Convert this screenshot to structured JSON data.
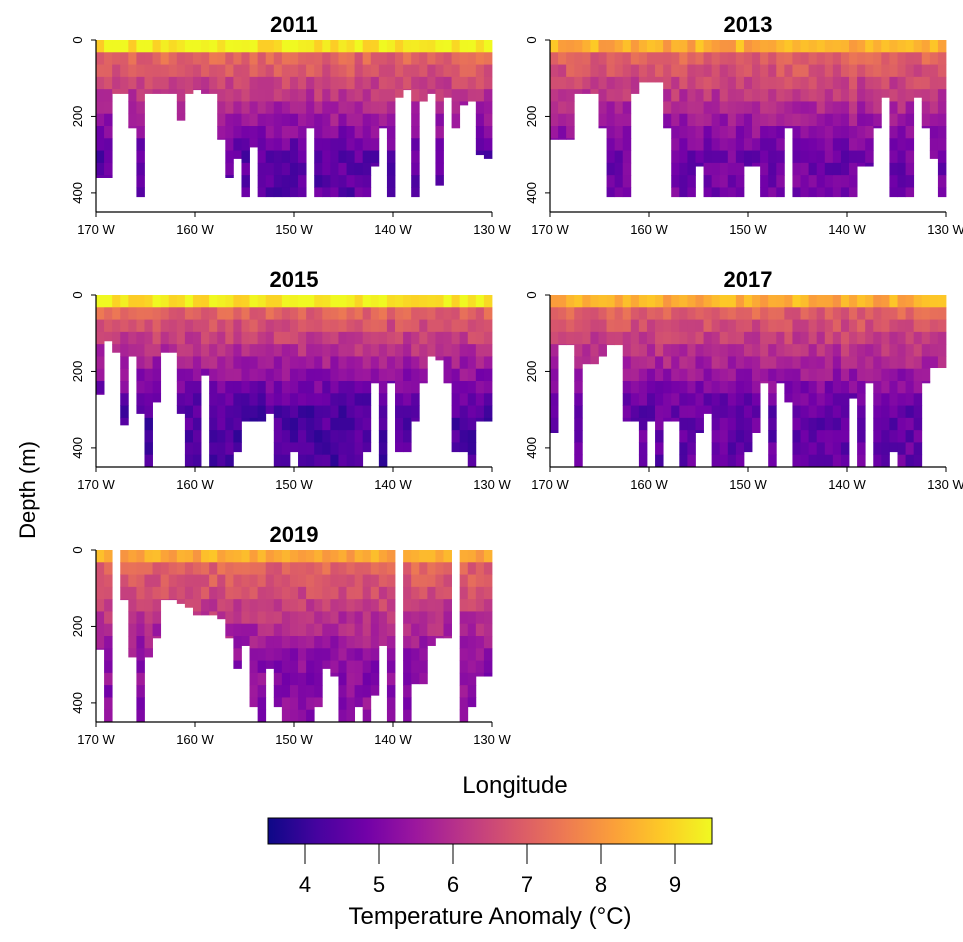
{
  "figure": {
    "y_axis_label": "Depth (m)",
    "x_axis_label": "Longitude"
  },
  "colorbar": {
    "label": "Temperature Anomaly (°C)",
    "min": 3.5,
    "max": 9.5,
    "ticks": [
      4,
      5,
      6,
      7,
      8,
      9
    ],
    "palette": [
      "#0d0887",
      "#46039f",
      "#7201a8",
      "#9c179e",
      "#bd3786",
      "#d8576b",
      "#ed7953",
      "#fb9f3a",
      "#fdca26",
      "#f0f921"
    ]
  },
  "chart_data": [
    {
      "type": "heatmap",
      "title": "2011",
      "x_range": [
        -170,
        -130
      ],
      "y_range": [
        0,
        450
      ],
      "y_inverted": true,
      "x_ticks": [
        "170 W",
        "160 W",
        "150 W",
        "140 W",
        "130 W"
      ],
      "y_ticks": [
        0,
        200,
        400
      ],
      "bottom_depth_profile": [
        330,
        330,
        110,
        110,
        200,
        380,
        110,
        110,
        110,
        110,
        180,
        110,
        100,
        110,
        110,
        230,
        330,
        280,
        380,
        250,
        380,
        380,
        380,
        380,
        380,
        380,
        200,
        380,
        380,
        380,
        380,
        380,
        380,
        380,
        300,
        200,
        380,
        120,
        100,
        380,
        130,
        110,
        350,
        120,
        200,
        140,
        130,
        270,
        280
      ],
      "surface_warm_depth": 40,
      "deep_value": 4.5
    },
    {
      "type": "heatmap",
      "title": "2013",
      "x_range": [
        -170,
        -130
      ],
      "y_range": [
        0,
        450
      ],
      "y_inverted": true,
      "x_ticks": [
        "170 W",
        "160 W",
        "150 W",
        "140 W",
        "130 W"
      ],
      "y_ticks": [
        0,
        200,
        400
      ],
      "bottom_depth_profile": [
        230,
        230,
        230,
        110,
        110,
        110,
        200,
        380,
        380,
        380,
        110,
        80,
        80,
        80,
        200,
        380,
        380,
        380,
        300,
        380,
        380,
        380,
        380,
        380,
        300,
        300,
        380,
        380,
        380,
        200,
        380,
        380,
        380,
        380,
        380,
        380,
        380,
        380,
        300,
        300,
        200,
        120,
        380,
        380,
        380,
        120,
        200,
        280,
        380
      ],
      "surface_warm_depth": 30,
      "deep_value": 4.8
    },
    {
      "type": "heatmap",
      "title": "2015",
      "x_range": [
        -170,
        -130
      ],
      "y_range": [
        0,
        450
      ],
      "y_inverted": true,
      "x_ticks": [
        "170 W",
        "160 W",
        "150 W",
        "140 W",
        "130 W"
      ],
      "y_ticks": [
        0,
        200,
        400
      ],
      "bottom_depth_profile": [
        230,
        90,
        120,
        310,
        130,
        280,
        420,
        250,
        120,
        120,
        280,
        420,
        420,
        180,
        420,
        420,
        420,
        380,
        300,
        300,
        300,
        280,
        420,
        420,
        380,
        420,
        420,
        420,
        420,
        420,
        420,
        420,
        420,
        380,
        200,
        420,
        200,
        380,
        380,
        300,
        200,
        130,
        140,
        200,
        380,
        380,
        420,
        300,
        300
      ],
      "surface_warm_depth": 35,
      "deep_value": 4.3
    },
    {
      "type": "heatmap",
      "title": "2017",
      "x_range": [
        -170,
        -130
      ],
      "y_range": [
        0,
        450
      ],
      "y_inverted": true,
      "x_ticks": [
        "170 W",
        "160 W",
        "150 W",
        "140 W",
        "130 W"
      ],
      "y_ticks": [
        0,
        200,
        400
      ],
      "bottom_depth_profile": [
        330,
        100,
        100,
        420,
        150,
        150,
        130,
        100,
        100,
        300,
        300,
        420,
        300,
        420,
        300,
        300,
        420,
        420,
        330,
        280,
        420,
        420,
        420,
        420,
        380,
        330,
        200,
        420,
        200,
        250,
        420,
        420,
        420,
        420,
        420,
        420,
        420,
        240,
        420,
        200,
        420,
        420,
        380,
        420,
        420,
        420,
        200,
        160,
        160
      ],
      "surface_warm_depth": 30,
      "deep_value": 4.6
    },
    {
      "type": "heatmap",
      "title": "2019",
      "x_range": [
        -170,
        -130
      ],
      "y_range": [
        0,
        450
      ],
      "y_inverted": true,
      "x_ticks": [
        "170 W",
        "160 W",
        "150 W",
        "140 W",
        "130 W"
      ],
      "y_ticks": [
        0,
        200,
        400
      ],
      "bottom_depth_profile": [
        230,
        420,
        100,
        100,
        250,
        420,
        250,
        200,
        100,
        100,
        110,
        120,
        140,
        140,
        140,
        150,
        200,
        280,
        220,
        380,
        420,
        280,
        380,
        420,
        420,
        420,
        420,
        380,
        280,
        300,
        420,
        420,
        380,
        420,
        350,
        220,
        420,
        250,
        420,
        320,
        320,
        220,
        200,
        200,
        280,
        420,
        380,
        300,
        300
      ],
      "surface_warm_depth": 30,
      "deep_value": 5.2,
      "gaps": [
        {
          "col": 2
        },
        {
          "col": 37
        },
        {
          "col": 44
        }
      ]
    }
  ]
}
